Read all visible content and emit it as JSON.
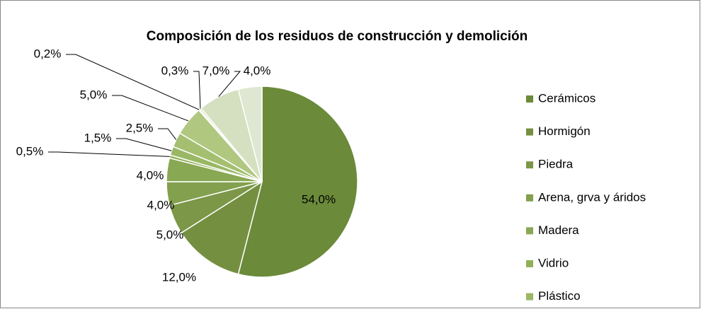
{
  "chart_data": {
    "type": "pie",
    "title": "Composición de los residuos de construcción y demolición",
    "categories": [
      "Cerámicos",
      "Hormigón",
      "Piedra",
      "Arena, grva y áridos",
      "Madera",
      "Vidrio",
      "Plástico",
      null,
      null,
      null,
      null,
      null,
      null
    ],
    "values": [
      54.0,
      12.0,
      5.0,
      4.0,
      4.0,
      0.5,
      1.5,
      2.5,
      5.0,
      0.2,
      0.3,
      7.0,
      4.0
    ],
    "value_labels": [
      "54,0%",
      "12,0%",
      "5,0%",
      "4,0%",
      "4,0%",
      "0,5%",
      "1,5%",
      "2,5%",
      "5,0%",
      "0,2%",
      "0,3%",
      "7,0%",
      "4,0%"
    ],
    "colors": [
      "#6b8a3a",
      "#748f40",
      "#7b9747",
      "#82a04d",
      "#89a853",
      "#91b05a",
      "#9ab864",
      "#a4bf70",
      "#b0c780",
      "#bccf94",
      "#c8d8a8",
      "#d4e0bf",
      "#dfe7d2"
    ],
    "legend": "right"
  }
}
